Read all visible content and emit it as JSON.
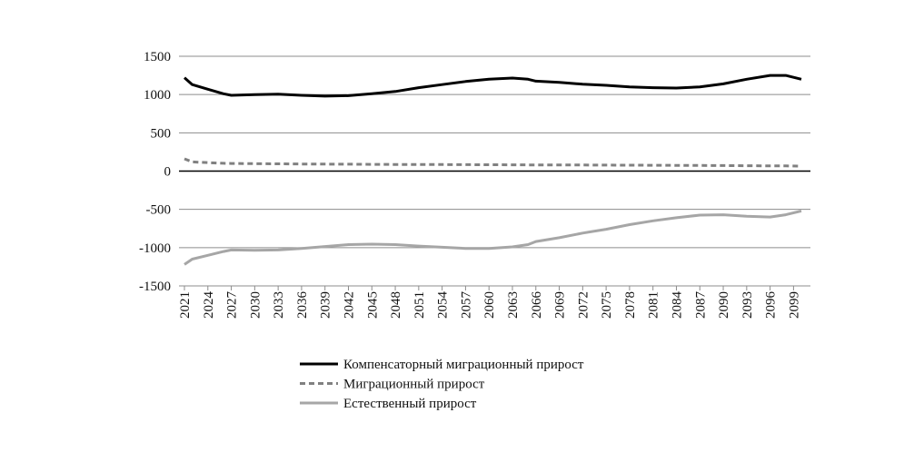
{
  "chart_data": {
    "type": "line",
    "x": [
      2021,
      2022,
      2024,
      2026,
      2027,
      2030,
      2033,
      2036,
      2039,
      2042,
      2045,
      2048,
      2051,
      2054,
      2057,
      2060,
      2063,
      2065,
      2066,
      2069,
      2072,
      2075,
      2078,
      2081,
      2084,
      2087,
      2090,
      2093,
      2096,
      2098,
      2100
    ],
    "xlim": [
      2021,
      2100
    ],
    "xticks": [
      2021,
      2024,
      2027,
      2030,
      2033,
      2036,
      2039,
      2042,
      2045,
      2048,
      2051,
      2054,
      2057,
      2060,
      2063,
      2066,
      2069,
      2072,
      2075,
      2078,
      2081,
      2084,
      2087,
      2090,
      2093,
      2096,
      2099
    ],
    "ylim": [
      -1500,
      1500
    ],
    "yticks": [
      -1500,
      -1000,
      -500,
      0,
      500,
      1000,
      1500
    ],
    "grid": true,
    "legend": "bottom",
    "series": [
      {
        "name": "Компенсаторный миграционный прирост",
        "color": "#000000",
        "dash": "solid",
        "values": [
          1220,
          1130,
          1070,
          1010,
          990,
          1000,
          1005,
          990,
          980,
          985,
          1010,
          1040,
          1090,
          1130,
          1170,
          1200,
          1215,
          1200,
          1175,
          1160,
          1135,
          1120,
          1100,
          1090,
          1085,
          1100,
          1140,
          1200,
          1250,
          1250,
          1200
        ]
      },
      {
        "name": "Миграционный прирост",
        "color": "#808080",
        "dash": "dashed",
        "values": [
          160,
          120,
          110,
          102,
          100,
          97,
          95,
          93,
          91,
          90,
          88,
          87,
          86,
          85,
          84,
          83,
          82,
          81,
          81,
          80,
          79,
          78,
          77,
          76,
          75,
          74,
          72,
          70,
          68,
          67,
          65
        ]
      },
      {
        "name": "Естественный прирост",
        "color": "#a6a6a6",
        "dash": "solid",
        "values": [
          -1220,
          -1150,
          -1100,
          -1050,
          -1030,
          -1035,
          -1030,
          -1010,
          -985,
          -960,
          -955,
          -960,
          -980,
          -995,
          -1010,
          -1010,
          -990,
          -960,
          -920,
          -870,
          -810,
          -760,
          -700,
          -650,
          -610,
          -575,
          -570,
          -590,
          -600,
          -570,
          -520
        ]
      }
    ]
  }
}
